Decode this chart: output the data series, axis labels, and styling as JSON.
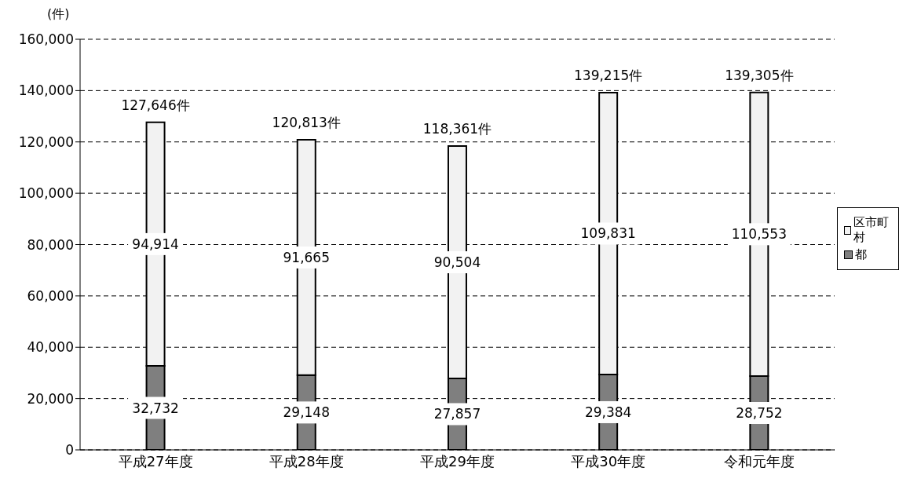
{
  "chart_data": {
    "type": "bar",
    "stacked": true,
    "ylabel": "(件)",
    "categories": [
      "平成27年度",
      "平成28年度",
      "平成29年度",
      "平成30年度",
      "令和元年度"
    ],
    "series": [
      {
        "name": "都",
        "color": "#7f7f7f",
        "values": [
          32732,
          29148,
          27857,
          29384,
          28752
        ],
        "value_labels": [
          "32,732",
          "29,148",
          "27,857",
          "29,384",
          "28,752"
        ]
      },
      {
        "name": "区市町村",
        "color": "#f2f2f2",
        "values": [
          94914,
          91665,
          90504,
          109831,
          110553
        ],
        "value_labels": [
          "94,914",
          "91,665",
          "90,504",
          "109,831",
          "110,553"
        ]
      }
    ],
    "totals": [
      "127,646件",
      "120,813件",
      "118,361件",
      "139,215件",
      "139,305件"
    ],
    "ylim": [
      0,
      160000
    ],
    "yticks": [
      {
        "value": 0,
        "label": "0"
      },
      {
        "value": 20000,
        "label": "20,000"
      },
      {
        "value": 40000,
        "label": "40,000"
      },
      {
        "value": 60000,
        "label": "60,000"
      },
      {
        "value": 80000,
        "label": "80,000"
      },
      {
        "value": 100000,
        "label": "100,000"
      },
      {
        "value": 120000,
        "label": "120,000"
      },
      {
        "value": 140000,
        "label": "140,000"
      },
      {
        "value": 160000,
        "label": "160,000"
      }
    ],
    "grid": "y",
    "legend": "right"
  }
}
